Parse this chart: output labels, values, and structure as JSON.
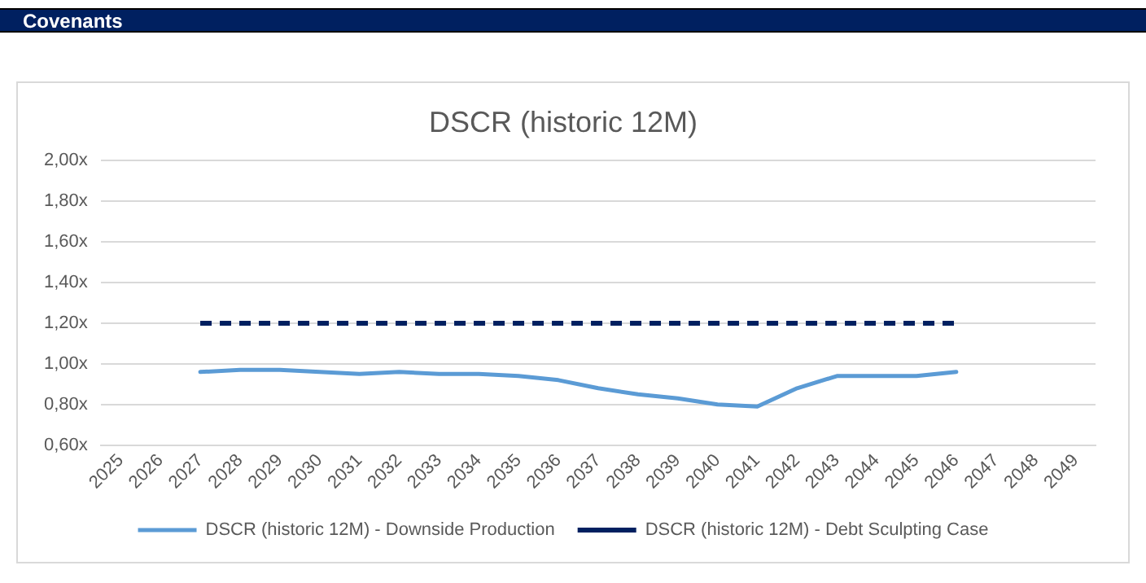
{
  "chart_data": {
    "type": "line",
    "title": "DSCR (historic 12M)",
    "annotations": [
      "Covenants"
    ],
    "categories": [
      "2025",
      "2026",
      "2027",
      "2028",
      "2029",
      "2030",
      "2031",
      "2032",
      "2033",
      "2034",
      "2035",
      "2036",
      "2037",
      "2038",
      "2039",
      "2040",
      "2041",
      "2042",
      "2043",
      "2044",
      "2045",
      "2046",
      "2047",
      "2048",
      "2049"
    ],
    "series": [
      {
        "name": "DSCR (historic 12M) - Downside Production",
        "color": "#5b9bd5",
        "line_style": "solid",
        "values": [
          null,
          null,
          0.96,
          0.97,
          0.97,
          0.96,
          0.95,
          0.96,
          0.95,
          0.95,
          0.94,
          0.92,
          0.88,
          0.85,
          0.83,
          0.8,
          0.79,
          0.88,
          0.94,
          0.94,
          0.94,
          0.96,
          null,
          null,
          null
        ]
      },
      {
        "name": "DSCR (historic 12M) - Debt Sculpting Case",
        "color": "#002060",
        "line_style": "dashed",
        "values": [
          null,
          null,
          1.2,
          1.2,
          1.2,
          1.2,
          1.2,
          1.2,
          1.2,
          1.2,
          1.2,
          1.2,
          1.2,
          1.2,
          1.2,
          1.2,
          1.2,
          1.2,
          1.2,
          1.2,
          1.2,
          1.2,
          null,
          null,
          null
        ]
      }
    ],
    "ylim": [
      0.6,
      2.0
    ],
    "yticks": [
      {
        "value": 0.6,
        "label": "0,60x"
      },
      {
        "value": 0.8,
        "label": "0,80x"
      },
      {
        "value": 1.0,
        "label": "1,00x"
      },
      {
        "value": 1.2,
        "label": "1,20x"
      },
      {
        "value": 1.4,
        "label": "1,40x"
      },
      {
        "value": 1.6,
        "label": "1,60x"
      },
      {
        "value": 1.8,
        "label": "1,80x"
      },
      {
        "value": 2.0,
        "label": "2,00x"
      }
    ],
    "grid": "y",
    "legend": "bottom",
    "marker": "none"
  }
}
